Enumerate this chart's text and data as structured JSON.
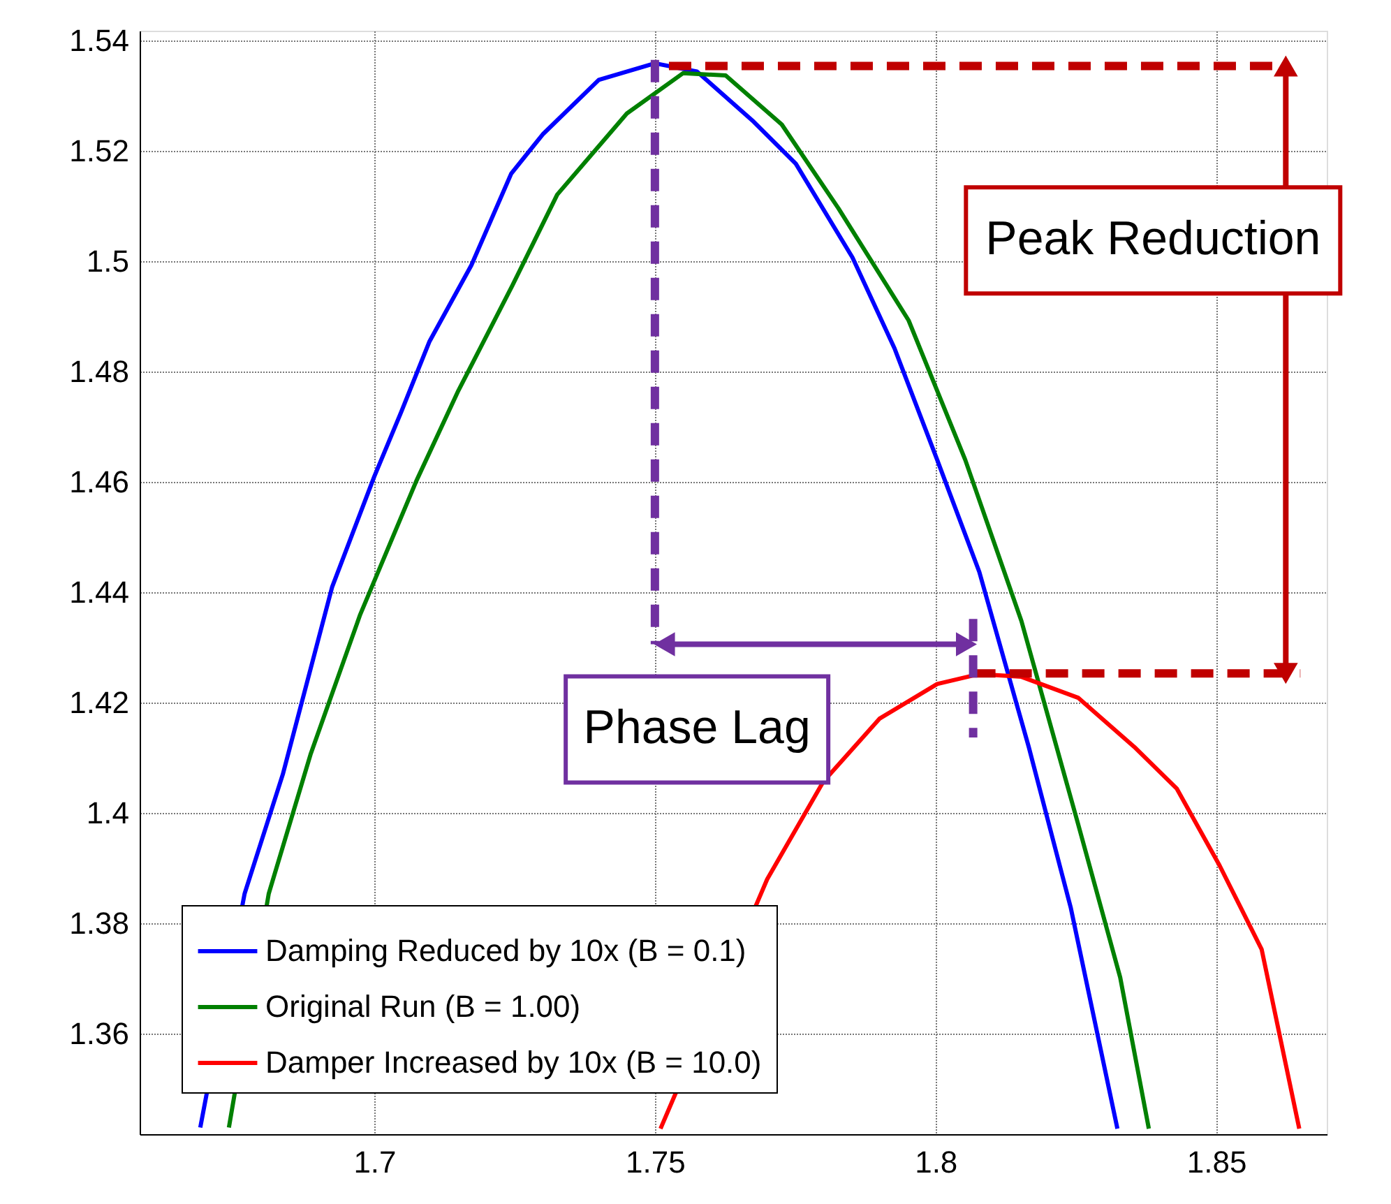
{
  "chart_data": {
    "type": "line",
    "xlim": [
      1.6582,
      1.8697
    ],
    "ylim": [
      1.3418,
      1.5418
    ],
    "xticks": [
      1.7,
      1.75,
      1.8,
      1.85
    ],
    "yticks": [
      1.36,
      1.38,
      1.4,
      1.42,
      1.44,
      1.46,
      1.48,
      1.5,
      1.52,
      1.54
    ],
    "grid": true,
    "legend": "bottom left",
    "line_style": "solid",
    "marker": "none",
    "series": [
      {
        "name": "Damping Reduced by 10x (B = 0.1)",
        "color": "#0000ff",
        "x": [
          1.669,
          1.6769,
          1.6837,
          1.6925,
          1.7,
          1.7048,
          1.7098,
          1.7173,
          1.7244,
          1.73,
          1.74,
          1.75,
          1.7575,
          1.7676,
          1.7751,
          1.7852,
          1.7927,
          1.8003,
          1.8078,
          1.8166,
          1.8241,
          1.8324
        ],
        "values": [
          1.343,
          1.3854,
          1.407,
          1.441,
          1.461,
          1.4727,
          1.4854,
          1.4993,
          1.5159,
          1.523,
          1.5329,
          1.5359,
          1.5344,
          1.5253,
          1.5177,
          1.5007,
          1.4842,
          1.464,
          1.4437,
          1.412,
          1.3828,
          1.3428
        ]
      },
      {
        "name": "Original Run (B = 1.00)",
        "color": "#008000",
        "x": [
          1.6741,
          1.6812,
          1.6887,
          1.6975,
          1.7075,
          1.715,
          1.7246,
          1.7326,
          1.745,
          1.755,
          1.7626,
          1.7726,
          1.7827,
          1.7952,
          1.8053,
          1.8153,
          1.8254,
          1.8329,
          1.838
        ],
        "values": [
          1.343,
          1.3854,
          1.4108,
          1.436,
          1.4602,
          1.4766,
          1.4956,
          1.5121,
          1.5268,
          1.5341,
          1.5337,
          1.5248,
          1.5096,
          1.4893,
          1.464,
          1.4348,
          1.398,
          1.3702,
          1.3428
        ]
      },
      {
        "name": "Damper Increased by 10x (B = 10.0)",
        "color": "#ff0000",
        "x": [
          1.751,
          1.76,
          1.77,
          1.78,
          1.79,
          1.8003,
          1.8078,
          1.8153,
          1.8254,
          1.8354,
          1.843,
          1.8506,
          1.8581,
          1.8648
        ],
        "values": [
          1.3428,
          null,
          1.388,
          1.4057,
          1.4171,
          1.4234,
          1.4252,
          1.4247,
          1.4209,
          1.412,
          1.4044,
          1.3905,
          1.3753,
          1.3428
        ]
      },
      {
        "color": "#c00000",
        "line_style": "dashed",
        "x": [
          1.7525,
          1.8614
        ],
        "values": [
          1.5354,
          1.5354
        ]
      },
      {
        "color": "#c00000",
        "line_style": "dashed",
        "x": [
          1.8067,
          1.865
        ],
        "values": [
          1.4253,
          1.4253
        ]
      },
      {
        "color": "#7030a0",
        "line_style": "dashed",
        "x": [
          1.75,
          1.75
        ],
        "values": [
          1.5365,
          1.4306
        ]
      },
      {
        "color": "#7030a0",
        "line_style": "dashed",
        "x": [
          1.8067,
          1.8067
        ],
        "values": [
          1.4352,
          1.4137
        ]
      },
      {
        "color": "#c00000",
        "marker": "triangle",
        "x": [
          1.8624,
          1.8624
        ],
        "values": [
          1.5354,
          1.4253
        ]
      },
      {
        "color": "#7030a0",
        "marker": "triangle",
        "x": [
          1.7517,
          1.8055
        ],
        "values": [
          1.4306,
          1.4306
        ]
      }
    ],
    "annotations": [
      {
        "text": "Peak Reduction",
        "x": 1.8624,
        "y": 1.5038
      },
      {
        "text": "Phase Lag",
        "x": 1.7575,
        "y": 1.4306
      }
    ]
  }
}
